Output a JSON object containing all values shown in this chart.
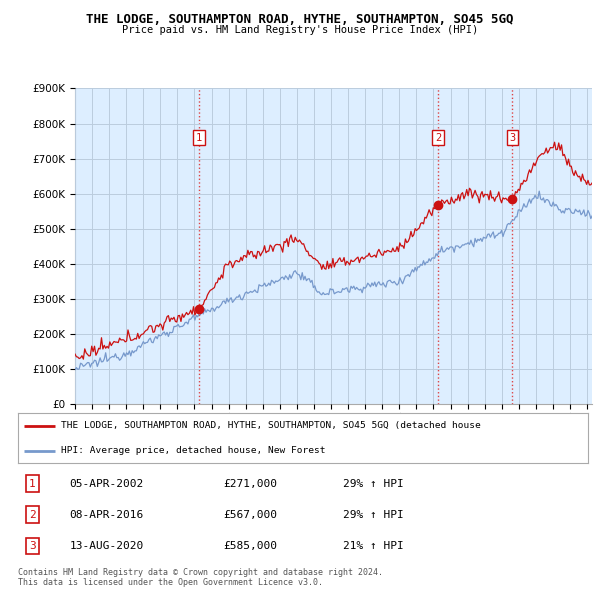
{
  "title": "THE LODGE, SOUTHAMPTON ROAD, HYTHE, SOUTHAMPTON, SO45 5GQ",
  "subtitle": "Price paid vs. HM Land Registry's House Price Index (HPI)",
  "ylim": [
    0,
    900000
  ],
  "xlim_start": 1995.0,
  "xlim_end": 2025.3,
  "sale_dates": [
    2002.27,
    2016.27,
    2020.62
  ],
  "sale_prices": [
    271000,
    567000,
    585000
  ],
  "sale_labels": [
    "1",
    "2",
    "3"
  ],
  "vline_color": "#dd4444",
  "vline_style": ":",
  "red_line_color": "#cc1111",
  "blue_line_color": "#7799cc",
  "chart_bg_color": "#ddeeff",
  "background_color": "#ffffff",
  "grid_color": "#bbccdd",
  "legend_line1": "THE LODGE, SOUTHAMPTON ROAD, HYTHE, SOUTHAMPTON, SO45 5GQ (detached house",
  "legend_line2": "HPI: Average price, detached house, New Forest",
  "table_entries": [
    {
      "num": "1",
      "date": "05-APR-2002",
      "price": "£271,000",
      "pct": "29% ↑ HPI"
    },
    {
      "num": "2",
      "date": "08-APR-2016",
      "price": "£567,000",
      "pct": "29% ↑ HPI"
    },
    {
      "num": "3",
      "date": "13-AUG-2020",
      "price": "£585,000",
      "pct": "21% ↑ HPI"
    }
  ],
  "footer": "Contains HM Land Registry data © Crown copyright and database right 2024.\nThis data is licensed under the Open Government Licence v3.0."
}
